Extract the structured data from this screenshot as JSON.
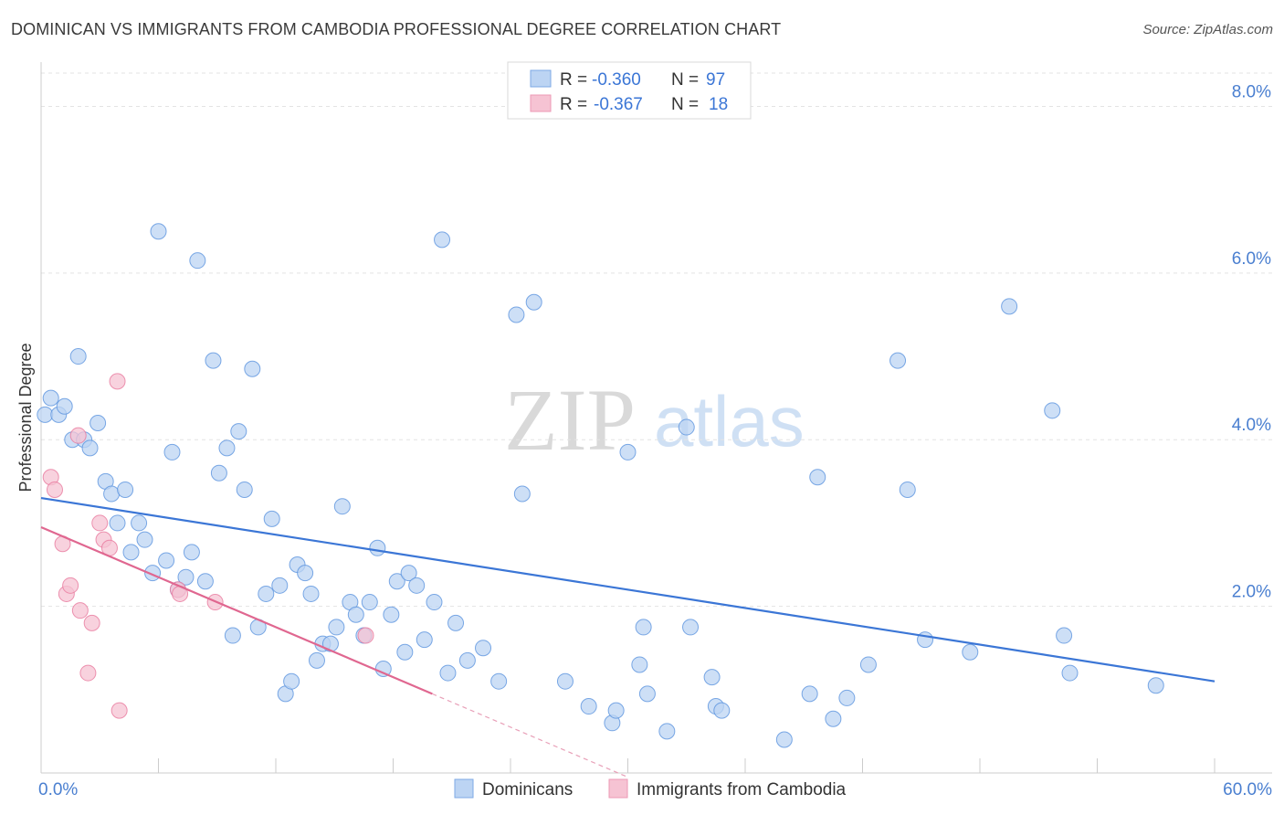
{
  "title": "DOMINICAN VS IMMIGRANTS FROM CAMBODIA PROFESSIONAL DEGREE CORRELATION CHART",
  "source": "Source: ZipAtlas.com",
  "watermark": {
    "zip": "ZIP",
    "atlas": "atlas"
  },
  "legend": {
    "rows": [
      {
        "r_label": "R =",
        "r_value": "-0.360",
        "n_label": "N =",
        "n_value": "97"
      },
      {
        "r_label": "R =",
        "r_value": "-0.367",
        "n_label": "N =",
        "n_value": "18"
      }
    ]
  },
  "chart_data": {
    "type": "scatter",
    "title": "DOMINICAN VS IMMIGRANTS FROM CAMBODIA PROFESSIONAL DEGREE CORRELATION CHART",
    "xlabel": "",
    "ylabel": "Professional Degree",
    "xlim": [
      0,
      60
    ],
    "ylim": [
      0,
      8.4
    ],
    "x_ticks": [
      "0.0%",
      "60.0%"
    ],
    "y_ticks": [
      {
        "value": 2,
        "label": "2.0%"
      },
      {
        "value": 4,
        "label": "4.0%"
      },
      {
        "value": 6,
        "label": "6.0%"
      },
      {
        "value": 8,
        "label": "8.0%"
      }
    ],
    "colors": {
      "dominicans": "#5b93df",
      "cambodia": "#e8799e",
      "dominicans_fill": "#bcd4f3",
      "cambodia_fill": "#f6c3d3"
    },
    "series": [
      {
        "name": "Dominicans",
        "points": [
          [
            0.2,
            4.3
          ],
          [
            0.5,
            4.5
          ],
          [
            0.9,
            4.3
          ],
          [
            1.2,
            4.4
          ],
          [
            1.6,
            4.0
          ],
          [
            1.9,
            5.0
          ],
          [
            2.2,
            4.0
          ],
          [
            2.5,
            3.9
          ],
          [
            2.9,
            4.2
          ],
          [
            3.3,
            3.5
          ],
          [
            3.6,
            3.35
          ],
          [
            3.9,
            3.0
          ],
          [
            4.3,
            3.4
          ],
          [
            4.6,
            2.65
          ],
          [
            5.0,
            3.0
          ],
          [
            5.3,
            2.8
          ],
          [
            5.7,
            2.4
          ],
          [
            6.0,
            6.5
          ],
          [
            6.4,
            2.55
          ],
          [
            6.7,
            3.85
          ],
          [
            7.0,
            2.2
          ],
          [
            7.4,
            2.35
          ],
          [
            7.7,
            2.65
          ],
          [
            8.0,
            6.15
          ],
          [
            8.4,
            2.3
          ],
          [
            8.8,
            4.95
          ],
          [
            9.1,
            3.6
          ],
          [
            9.5,
            3.9
          ],
          [
            9.8,
            1.65
          ],
          [
            10.1,
            4.1
          ],
          [
            10.4,
            3.4
          ],
          [
            10.8,
            4.85
          ],
          [
            11.1,
            1.75
          ],
          [
            11.5,
            2.15
          ],
          [
            11.8,
            3.05
          ],
          [
            12.2,
            2.25
          ],
          [
            12.5,
            0.95
          ],
          [
            12.8,
            1.1
          ],
          [
            13.1,
            2.5
          ],
          [
            13.5,
            2.4
          ],
          [
            13.8,
            2.15
          ],
          [
            14.1,
            1.35
          ],
          [
            14.4,
            1.55
          ],
          [
            14.8,
            1.55
          ],
          [
            15.1,
            1.75
          ],
          [
            15.4,
            3.2
          ],
          [
            15.8,
            2.05
          ],
          [
            16.1,
            1.9
          ],
          [
            16.5,
            1.65
          ],
          [
            16.8,
            2.05
          ],
          [
            17.2,
            2.7
          ],
          [
            17.5,
            1.25
          ],
          [
            17.9,
            1.9
          ],
          [
            18.2,
            2.3
          ],
          [
            18.6,
            1.45
          ],
          [
            18.8,
            2.4
          ],
          [
            19.2,
            2.25
          ],
          [
            19.6,
            1.6
          ],
          [
            20.1,
            2.05
          ],
          [
            20.5,
            6.4
          ],
          [
            20.8,
            1.2
          ],
          [
            21.2,
            1.8
          ],
          [
            21.8,
            1.35
          ],
          [
            22.6,
            1.5
          ],
          [
            23.4,
            1.1
          ],
          [
            24.3,
            5.5
          ],
          [
            24.6,
            3.35
          ],
          [
            25.2,
            5.65
          ],
          [
            26.8,
            1.1
          ],
          [
            28.0,
            0.8
          ],
          [
            29.2,
            0.6
          ],
          [
            29.4,
            0.75
          ],
          [
            30.0,
            3.85
          ],
          [
            30.6,
            1.3
          ],
          [
            30.8,
            1.75
          ],
          [
            31.0,
            0.95
          ],
          [
            32.0,
            0.5
          ],
          [
            33.0,
            4.15
          ],
          [
            33.2,
            1.75
          ],
          [
            34.3,
            1.15
          ],
          [
            34.5,
            0.8
          ],
          [
            34.8,
            0.75
          ],
          [
            38.0,
            0.4
          ],
          [
            39.3,
            0.95
          ],
          [
            39.7,
            3.55
          ],
          [
            40.5,
            0.65
          ],
          [
            41.2,
            0.9
          ],
          [
            42.3,
            1.3
          ],
          [
            43.8,
            4.95
          ],
          [
            44.3,
            3.4
          ],
          [
            45.2,
            1.6
          ],
          [
            47.5,
            1.45
          ],
          [
            49.5,
            5.6
          ],
          [
            51.7,
            4.35
          ],
          [
            52.3,
            1.65
          ],
          [
            52.6,
            1.2
          ],
          [
            57.0,
            1.05
          ]
        ]
      },
      {
        "name": "Immigrants from Cambodia",
        "points": [
          [
            0.5,
            3.55
          ],
          [
            0.7,
            3.4
          ],
          [
            1.1,
            2.75
          ],
          [
            1.3,
            2.15
          ],
          [
            1.5,
            2.25
          ],
          [
            1.9,
            4.05
          ],
          [
            2.0,
            1.95
          ],
          [
            2.4,
            1.2
          ],
          [
            2.6,
            1.8
          ],
          [
            3.0,
            3.0
          ],
          [
            3.2,
            2.8
          ],
          [
            3.5,
            2.7
          ],
          [
            3.9,
            4.7
          ],
          [
            4.0,
            0.75
          ],
          [
            7.0,
            2.2
          ],
          [
            7.1,
            2.15
          ],
          [
            8.9,
            2.05
          ],
          [
            16.6,
            1.65
          ]
        ]
      }
    ],
    "trend_lines": [
      {
        "series": "Dominicans",
        "x": [
          0,
          60
        ],
        "y": [
          3.3,
          1.1
        ]
      },
      {
        "series": "Immigrants from Cambodia",
        "x": [
          0,
          20
        ],
        "y": [
          2.95,
          0.95
        ],
        "dashed_extension_to_x": 30
      }
    ],
    "legend_position": "top-center"
  },
  "bottom_legend": [
    {
      "label": "Dominicans"
    },
    {
      "label": "Immigrants from Cambodia"
    }
  ]
}
